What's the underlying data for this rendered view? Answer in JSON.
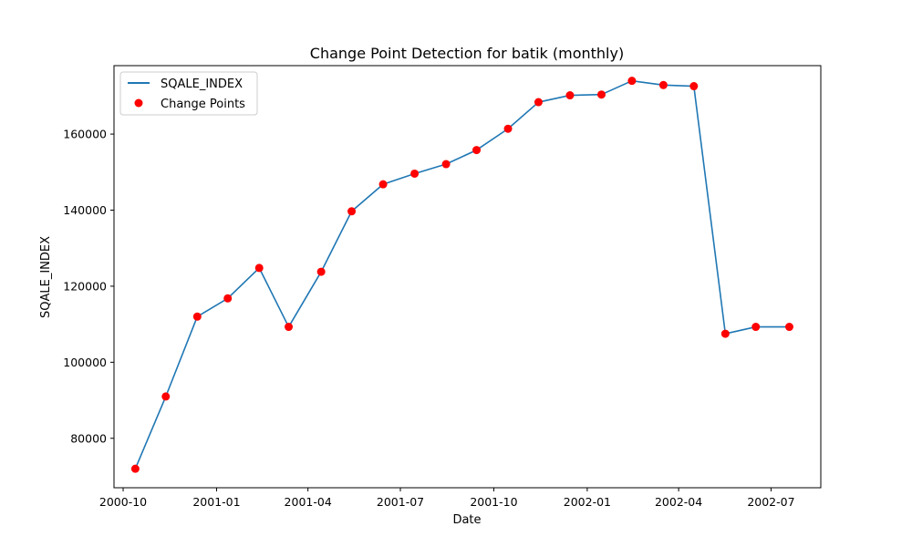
{
  "chart_data": {
    "type": "line",
    "title": "Change Point Detection for batik (monthly)",
    "xlabel": "Date",
    "ylabel": "SQALE_INDEX",
    "x": [
      "2000-10-13",
      "2000-11-12",
      "2000-12-13",
      "2001-01-12",
      "2001-02-12",
      "2001-03-13",
      "2001-04-14",
      "2001-05-14",
      "2001-06-14",
      "2001-07-15",
      "2001-08-15",
      "2001-09-14",
      "2001-10-15",
      "2001-11-14",
      "2001-12-15",
      "2002-01-15",
      "2002-02-14",
      "2002-03-17",
      "2002-04-16",
      "2002-05-17",
      "2002-06-16",
      "2002-07-19"
    ],
    "series": [
      {
        "name": "SQALE_INDEX",
        "color": "#1f77b4",
        "values": [
          72000,
          91000,
          112000,
          116800,
          124800,
          109300,
          123800,
          139700,
          146800,
          149600,
          152100,
          155800,
          161400,
          168400,
          170200,
          170400,
          174000,
          172900,
          172600,
          107500,
          109300,
          109300
        ]
      },
      {
        "name": "Change Points",
        "color": "#ff0000",
        "type": "scatter",
        "values": [
          72000,
          91000,
          112000,
          116800,
          124800,
          109300,
          123800,
          139700,
          146800,
          149600,
          152100,
          155800,
          161400,
          168400,
          170200,
          170400,
          174000,
          172900,
          172600,
          107500,
          109300,
          109300
        ]
      }
    ],
    "xlim": [
      "2000-09-22",
      "2002-08-19"
    ],
    "ylim": [
      67000,
      178000
    ],
    "xticks": [
      "2000-10-01",
      "2001-01-01",
      "2001-04-01",
      "2001-07-01",
      "2001-10-01",
      "2002-01-01",
      "2002-04-01",
      "2002-07-01"
    ],
    "xtick_labels": [
      "2000-10",
      "2001-01",
      "2001-04",
      "2001-07",
      "2001-10",
      "2002-01",
      "2002-04",
      "2002-07"
    ],
    "yticks": [
      80000,
      100000,
      120000,
      140000,
      160000
    ],
    "ytick_labels": [
      "80000",
      "100000",
      "120000",
      "140000",
      "160000"
    ],
    "grid": false,
    "legend_position": "top-left"
  }
}
